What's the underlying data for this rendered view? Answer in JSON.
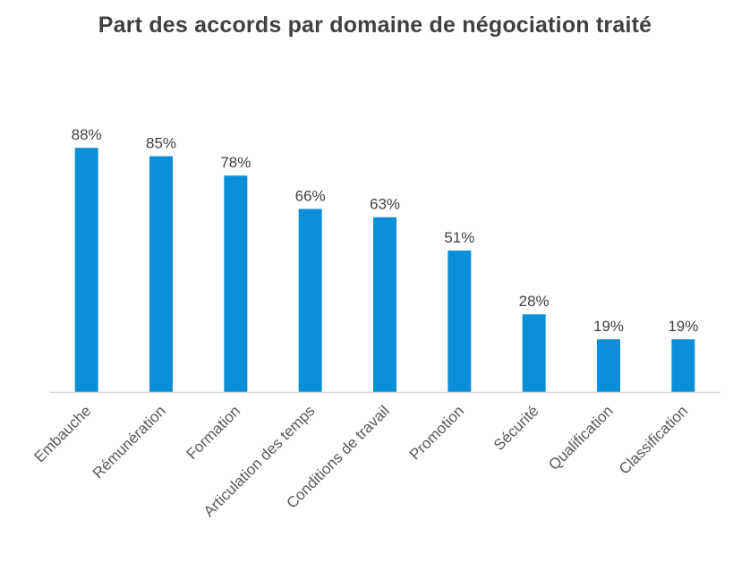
{
  "chart_data": {
    "type": "bar",
    "title": "Part des accords par domaine de négociation traité",
    "categories": [
      "Embauche",
      "Rémunération",
      "Formation",
      "Articulation des temps",
      "Conditions de travail",
      "Promotion",
      "Sécurité",
      "Qualification",
      "Classification"
    ],
    "values": [
      88,
      85,
      78,
      66,
      63,
      51,
      28,
      19,
      19
    ],
    "value_labels": [
      "88%",
      "85%",
      "78%",
      "66%",
      "63%",
      "51%",
      "28%",
      "19%",
      "19%"
    ],
    "xlabel": "",
    "ylabel": "",
    "ylim": [
      0,
      100
    ],
    "grid": false,
    "legend": "none",
    "bar_color": "#0B8FD8",
    "axis_color": "#D9D9D9"
  }
}
